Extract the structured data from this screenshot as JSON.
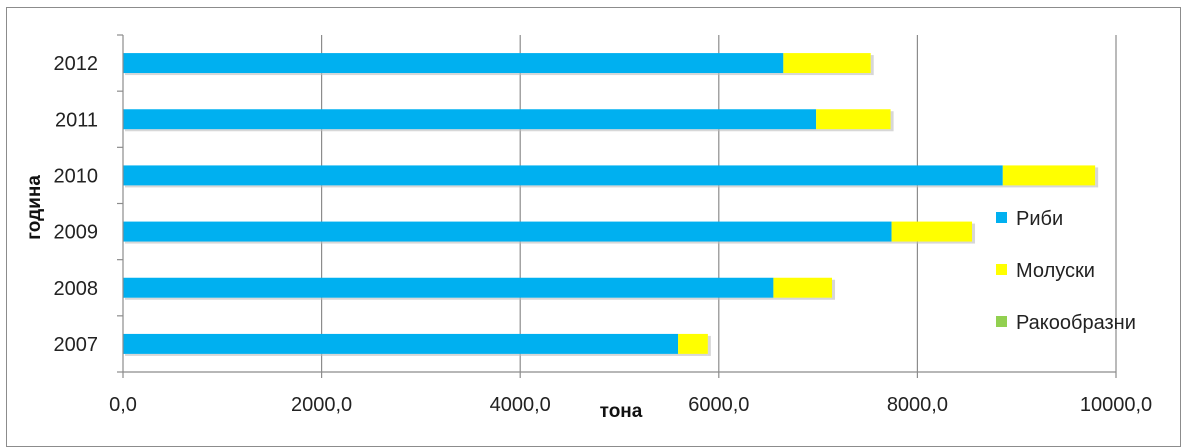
{
  "chart_data": {
    "type": "bar",
    "orientation": "horizontal",
    "stacked": true,
    "categories": [
      "2007",
      "2008",
      "2009",
      "2010",
      "2011",
      "2012"
    ],
    "series": [
      {
        "name": "Риби",
        "color": "#00b0f0",
        "values": [
          5590,
          6550,
          7740,
          8860,
          6980,
          6650
        ]
      },
      {
        "name": "Молуски",
        "color": "#ffff00",
        "values": [
          300,
          590,
          810,
          930,
          750,
          880
        ]
      },
      {
        "name": "Ракообразни",
        "color": "#92d050",
        "values": [
          0,
          0,
          0,
          0,
          0,
          0
        ]
      }
    ],
    "xlabel": "тона",
    "ylabel": "година",
    "xlim": [
      0,
      10000
    ],
    "x_ticks": [
      "0,0",
      "2000,0",
      "4000,0",
      "6000,0",
      "8000,0",
      "10000,0"
    ],
    "grid": "vertical",
    "legend_position": "right"
  }
}
